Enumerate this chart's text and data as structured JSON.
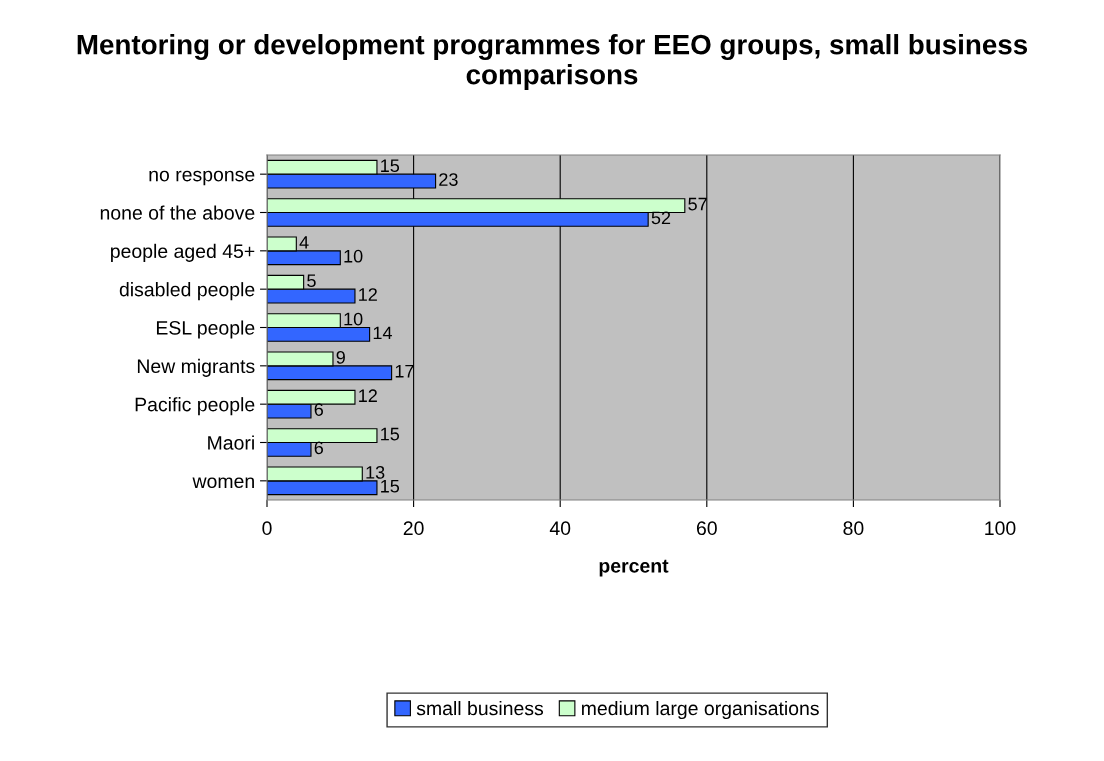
{
  "chart_data": {
    "type": "bar",
    "orientation": "horizontal",
    "title": "Mentoring or development programmes for EEO groups, small business comparisons",
    "xlabel": "percent",
    "categories": [
      "no response",
      "none of the above",
      "people aged 45+",
      "disabled people",
      "ESL people",
      "New migrants",
      "Pacific people",
      "Maori",
      "women"
    ],
    "series": [
      {
        "name": "small business",
        "color": "#3366ff",
        "values": [
          23,
          52,
          10,
          12,
          14,
          17,
          6,
          6,
          15
        ]
      },
      {
        "name": "medium large organisations",
        "color": "#ccffcc",
        "values": [
          15,
          57,
          4,
          5,
          10,
          9,
          12,
          15,
          13
        ]
      }
    ],
    "xlim": [
      0,
      100
    ],
    "xticks": [
      0,
      20,
      40,
      60,
      80,
      100
    ],
    "grid": "x",
    "legend": "bottom",
    "data_labels": true
  }
}
